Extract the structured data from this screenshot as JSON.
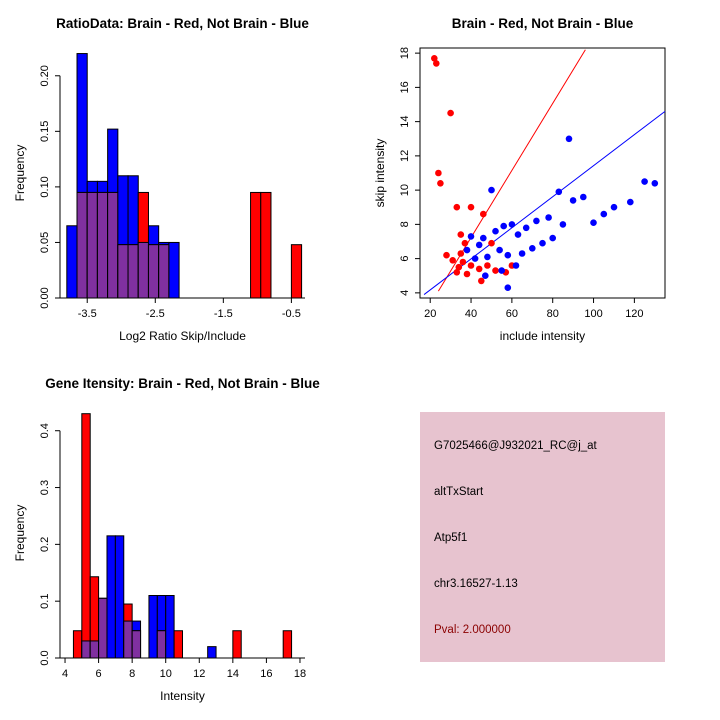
{
  "figure": {
    "background": "#FFFFFF",
    "red_hex": "#FF0000",
    "blue_hex": "#0000FF",
    "overlap_hex": "#8030A0"
  },
  "chart_data": [
    {
      "id": "ratio-histogram",
      "type": "bar",
      "subtype": "overlaid-histogram",
      "title": "RatioData: Brain - Red, Not Brain - Blue",
      "xlabel": "Log2 Ratio Skip/Include",
      "ylabel": "Frequency",
      "xlim": [
        -3.9,
        -0.3
      ],
      "ylim": [
        0,
        0.225
      ],
      "xticks": [
        -3.5,
        -2.5,
        -1.5,
        -0.5
      ],
      "xtick_labels": [
        "-3.5",
        "-2.5",
        "-1.5",
        "-0.5"
      ],
      "yticks": [
        0,
        0.05,
        0.1,
        0.15,
        0.2
      ],
      "ytick_labels": [
        "0.00",
        "0.05",
        "0.10",
        "0.15",
        "0.20"
      ],
      "bin_start": -3.8,
      "bin_width": 0.15,
      "overlap_color": "#8030A0",
      "series": [
        {
          "name": "Not Brain",
          "color": "#0000FF",
          "values": [
            0.065,
            0.22,
            0.105,
            0.105,
            0.152,
            0.11,
            0.11,
            0.05,
            0.065,
            0.05,
            0.05,
            0,
            0,
            0,
            0,
            0,
            0,
            0,
            0,
            0,
            0,
            0,
            0
          ]
        },
        {
          "name": "Brain",
          "color": "#FF0000",
          "values": [
            0,
            0.095,
            0.095,
            0.095,
            0.095,
            0.048,
            0.048,
            0.095,
            0.048,
            0.048,
            0,
            0,
            0,
            0,
            0,
            0,
            0,
            0,
            0.095,
            0.095,
            0,
            0,
            0.048
          ]
        }
      ]
    },
    {
      "id": "intensity-scatter",
      "type": "scatter",
      "title": "Brain - Red, Not Brain - Blue",
      "xlabel": "include intensity",
      "ylabel": "skip intensity",
      "xlim": [
        15,
        135
      ],
      "ylim": [
        3.7,
        18.3
      ],
      "xticks": [
        20,
        40,
        60,
        80,
        100,
        120
      ],
      "xtick_labels": [
        "20",
        "40",
        "60",
        "80",
        "100",
        "120"
      ],
      "yticks": [
        4,
        6,
        8,
        10,
        12,
        14,
        16,
        18
      ],
      "ytick_labels": [
        "4",
        "6",
        "8",
        "10",
        "12",
        "14",
        "16",
        "18"
      ],
      "series": [
        {
          "name": "Brain",
          "color": "#FF0000",
          "points": [
            [
              22,
              17.7
            ],
            [
              23,
              17.4
            ],
            [
              30,
              14.5
            ],
            [
              24,
              11.0
            ],
            [
              25,
              10.4
            ],
            [
              33,
              9.0
            ],
            [
              40,
              9.0
            ],
            [
              46,
              8.6
            ],
            [
              28,
              6.2
            ],
            [
              31,
              5.9
            ],
            [
              35,
              7.4
            ],
            [
              37,
              6.9
            ],
            [
              35,
              6.3
            ],
            [
              36,
              5.8
            ],
            [
              34,
              5.5
            ],
            [
              33,
              5.2
            ],
            [
              38,
              5.1
            ],
            [
              40,
              5.6
            ],
            [
              44,
              5.4
            ],
            [
              45,
              4.7
            ],
            [
              48,
              5.6
            ],
            [
              52,
              5.3
            ],
            [
              57,
              5.2
            ],
            [
              60,
              5.6
            ],
            [
              50,
              6.9
            ]
          ]
        },
        {
          "name": "Not Brain",
          "color": "#0000FF",
          "points": [
            [
              38,
              6.5
            ],
            [
              40,
              7.3
            ],
            [
              42,
              6.0
            ],
            [
              44,
              6.8
            ],
            [
              46,
              7.2
            ],
            [
              47,
              5.0
            ],
            [
              48,
              6.1
            ],
            [
              50,
              10.0
            ],
            [
              52,
              7.6
            ],
            [
              54,
              6.5
            ],
            [
              55,
              5.3
            ],
            [
              56,
              7.9
            ],
            [
              58,
              4.3
            ],
            [
              58,
              6.2
            ],
            [
              60,
              8.0
            ],
            [
              62,
              5.6
            ],
            [
              63,
              7.4
            ],
            [
              65,
              6.3
            ],
            [
              67,
              7.8
            ],
            [
              70,
              6.6
            ],
            [
              72,
              8.2
            ],
            [
              75,
              6.9
            ],
            [
              78,
              8.4
            ],
            [
              80,
              7.2
            ],
            [
              83,
              9.9
            ],
            [
              85,
              8.0
            ],
            [
              88,
              13.0
            ],
            [
              90,
              9.4
            ],
            [
              95,
              9.6
            ],
            [
              100,
              8.1
            ],
            [
              105,
              8.6
            ],
            [
              110,
              9.0
            ],
            [
              118,
              9.3
            ],
            [
              125,
              10.5
            ],
            [
              130,
              10.4
            ]
          ]
        }
      ],
      "lines": [
        {
          "name": "brain-fit-line",
          "color": "#FF0000",
          "x": [
            24,
            96
          ],
          "y": [
            4.1,
            18.2
          ]
        },
        {
          "name": "notbrain-fit-line",
          "color": "#0000FF",
          "x": [
            17,
            135
          ],
          "y": [
            3.9,
            14.6
          ]
        }
      ]
    },
    {
      "id": "gene-intensity-histogram",
      "type": "bar",
      "subtype": "overlaid-histogram",
      "title": "Gene Itensity: Brain - Red, Not Brain - Blue",
      "xlabel": "Intensity",
      "ylabel": "Frequency",
      "xlim": [
        3.7,
        18.3
      ],
      "ylim": [
        0,
        0.44
      ],
      "xticks": [
        4,
        6,
        8,
        10,
        12,
        14,
        16,
        18
      ],
      "xtick_labels": [
        "4",
        "6",
        "8",
        "10",
        "12",
        "14",
        "16",
        "18"
      ],
      "yticks": [
        0,
        0.1,
        0.2,
        0.3,
        0.4
      ],
      "ytick_labels": [
        "0.0",
        "0.1",
        "0.2",
        "0.3",
        "0.4"
      ],
      "bin_start": 4.0,
      "bin_width": 0.5,
      "overlap_color": "#8030A0",
      "series": [
        {
          "name": "Not Brain",
          "color": "#0000FF",
          "values": [
            0,
            0,
            0.03,
            0.03,
            0.105,
            0.215,
            0.215,
            0.065,
            0.065,
            0,
            0.11,
            0.11,
            0.11,
            0,
            0,
            0,
            0,
            0.02,
            0,
            0,
            0,
            0,
            0,
            0,
            0,
            0,
            0,
            0
          ]
        },
        {
          "name": "Brain",
          "color": "#FF0000",
          "values": [
            0,
            0.048,
            0.43,
            0.143,
            0.105,
            0,
            0,
            0.095,
            0.048,
            0,
            0,
            0.048,
            0,
            0.048,
            0,
            0,
            0,
            0,
            0,
            0,
            0.048,
            0,
            0,
            0,
            0,
            0,
            0.048,
            0
          ]
        }
      ]
    }
  ],
  "info_panel": {
    "bg": "#E7C3CF",
    "lines": [
      {
        "text": "G7025466@J932021_RC@j_at",
        "color": "#000000"
      },
      {
        "text": "altTxStart",
        "color": "#000000"
      },
      {
        "text": "Atp5f1",
        "color": "#000000"
      },
      {
        "text": "chr3.16527-1.13",
        "color": "#000000"
      },
      {
        "text": "Pval: 2.000000",
        "color": "#8B0000"
      }
    ]
  }
}
